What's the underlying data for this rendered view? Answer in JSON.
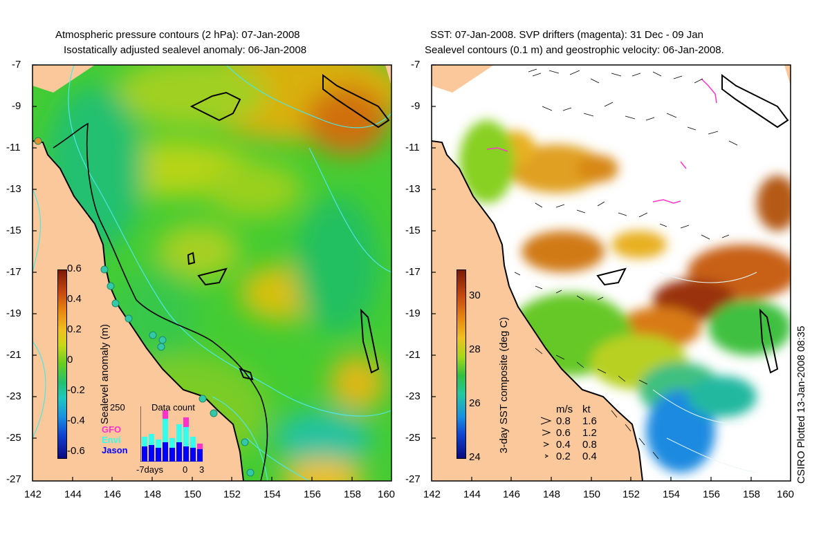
{
  "left_panel": {
    "title_line1": "Atmospheric pressure contours (2 hPa): 07-Jan-2008",
    "title_line2": "Isostatically adjusted sealevel anomaly: 06-Jan-2008",
    "colorbar": {
      "label": "Sealevel anomaly (m)",
      "ticks": [
        "0.6",
        "0.4",
        "0.2",
        "0",
        "-0.2",
        "-0.4",
        "-0.6"
      ]
    },
    "inset": {
      "title": "Data count",
      "max_label": "250",
      "legend": [
        "GFO",
        "Envi",
        "Jason"
      ],
      "legend_colors": [
        "#ff33cc",
        "#33ffee",
        "#0000ff"
      ],
      "x_labels": [
        "-7days",
        "0",
        "3"
      ]
    }
  },
  "right_panel": {
    "title_line1": "SST: 07-Jan-2008. SVP drifters (magenta): 31 Dec - 09 Jan",
    "title_line2": "Sealevel contours (0.1 m) and geostrophic velocity: 06-Jan-2008.",
    "colorbar": {
      "label": "3-day SST composite (deg C)",
      "ticks": [
        "30",
        "28",
        "26",
        "24"
      ]
    },
    "velocity_legend": {
      "header_ms": "m/s",
      "header_kt": "kt",
      "rows": [
        [
          "0.8",
          "1.6"
        ],
        [
          "0.6",
          "1.2"
        ],
        [
          "0.4",
          "0.8"
        ],
        [
          "0.2",
          "0.4"
        ]
      ]
    }
  },
  "axes": {
    "lat_ticks": [
      "-7",
      "-9",
      "-11",
      "-13",
      "-15",
      "-17",
      "-19",
      "-21",
      "-23",
      "-25",
      "-27"
    ],
    "lon_ticks": [
      "142",
      "144",
      "146",
      "148",
      "150",
      "152",
      "154",
      "156",
      "158",
      "160"
    ]
  },
  "credit": "CSIRO Plotted 13-Jan-2008 08:35",
  "colors": {
    "land": "#fac89a",
    "ocean_green": "#33cc33",
    "warm": "#e08a14",
    "hot": "#b44a0a",
    "cool": "#22c8a0",
    "contour": "#4ee6e6",
    "coast": "#000000",
    "drifter": "#ff33cc"
  }
}
